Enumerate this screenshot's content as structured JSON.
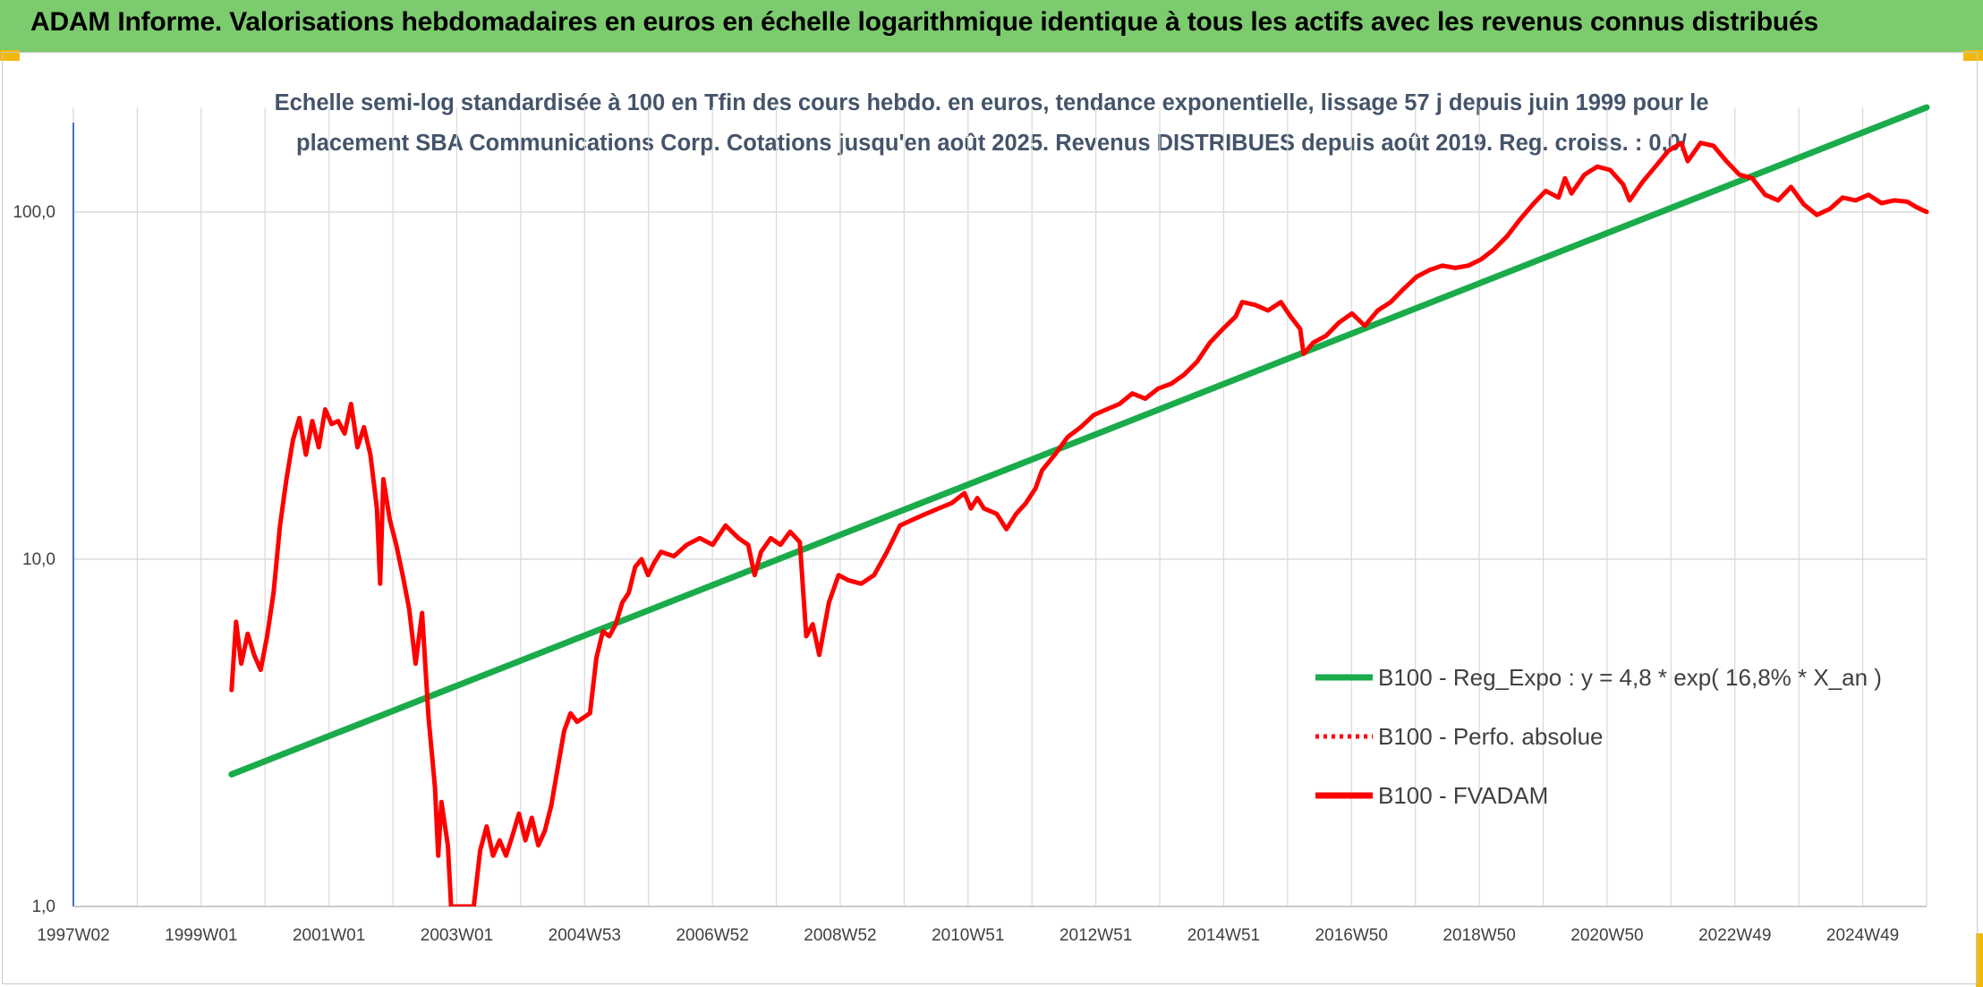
{
  "header": {
    "title": "ADAM Informe. Valorisations hebdomadaires en euros en échelle logarithmique identique à tous les actifs avec les revenus connus distribués"
  },
  "colors": {
    "banner": "#7ccb6e",
    "trend": "#1aab4a",
    "fvadam": "#ff0000",
    "grid": "#d9d9d9",
    "text": "#44546a"
  },
  "chart_data": {
    "type": "line",
    "title_lines": [
      "Echelle semi-log standardisée à 100 en Tfin des cours hebdo. en euros, tendance exponentielle, lissage 57 j depuis juin 1999 pour le",
      "placement SBA Communications Corp. Cotations jusqu'en août 2025. Revenus DISTRIBUES depuis août 2019. Reg. croiss. : 0,0/"
    ],
    "y_scale": "log",
    "ylim": [
      1,
      200
    ],
    "yticks": [
      "100,0",
      "10,0",
      "1,0"
    ],
    "x_tick_labels": [
      "1997W02",
      "1999W01",
      "2001W01",
      "2003W01",
      "2004W53",
      "2006W52",
      "2008W52",
      "2010W51",
      "2012W51",
      "2014W51",
      "2016W50",
      "2018W50",
      "2020W50",
      "2022W49",
      "2024W49"
    ],
    "xlim": [
      1997.0,
      2025.7
    ],
    "legend_position": "bottom-right",
    "series": [
      {
        "name": "B100 - Reg_Expo : y = 4,8 * exp( 16,8% *  X_an )",
        "style": "solid",
        "color": "#1aab4a",
        "points": [
          [
            1999.45,
            2.4
          ],
          [
            2025.7,
            200
          ]
        ]
      },
      {
        "name": "B100 - Perfo. absolue",
        "style": "dotted",
        "color": "#ff0000",
        "points": []
      },
      {
        "name": "B100 - FVADAM",
        "style": "solid",
        "color": "#ff0000",
        "points": [
          [
            1999.45,
            4.2
          ],
          [
            1999.52,
            6.6
          ],
          [
            1999.6,
            5.0
          ],
          [
            1999.7,
            6.1
          ],
          [
            1999.8,
            5.3
          ],
          [
            1999.9,
            4.8
          ],
          [
            2000.0,
            6.0
          ],
          [
            2000.1,
            8.0
          ],
          [
            2000.2,
            12.5
          ],
          [
            2000.3,
            17.0
          ],
          [
            2000.4,
            22.0
          ],
          [
            2000.5,
            25.5
          ],
          [
            2000.6,
            20.0
          ],
          [
            2000.7,
            25.0
          ],
          [
            2000.8,
            21.0
          ],
          [
            2000.9,
            27.0
          ],
          [
            2001.0,
            24.5
          ],
          [
            2001.1,
            25.0
          ],
          [
            2001.2,
            23.0
          ],
          [
            2001.3,
            28.0
          ],
          [
            2001.4,
            21.0
          ],
          [
            2001.5,
            24.0
          ],
          [
            2001.6,
            20.0
          ],
          [
            2001.7,
            14.0
          ],
          [
            2001.75,
            8.5
          ],
          [
            2001.8,
            17.0
          ],
          [
            2001.9,
            13.0
          ],
          [
            2002.0,
            11.0
          ],
          [
            2002.1,
            9.0
          ],
          [
            2002.2,
            7.2
          ],
          [
            2002.3,
            5.0
          ],
          [
            2002.4,
            7.0
          ],
          [
            2002.5,
            3.5
          ],
          [
            2002.6,
            2.2
          ],
          [
            2002.65,
            1.4
          ],
          [
            2002.7,
            2.0
          ],
          [
            2002.8,
            1.5
          ],
          [
            2002.85,
            1.0
          ],
          [
            2003.2,
            1.0
          ],
          [
            2003.3,
            1.45
          ],
          [
            2003.4,
            1.7
          ],
          [
            2003.5,
            1.4
          ],
          [
            2003.6,
            1.55
          ],
          [
            2003.7,
            1.4
          ],
          [
            2003.8,
            1.6
          ],
          [
            2003.9,
            1.85
          ],
          [
            2004.0,
            1.55
          ],
          [
            2004.1,
            1.8
          ],
          [
            2004.2,
            1.5
          ],
          [
            2004.3,
            1.65
          ],
          [
            2004.4,
            1.95
          ],
          [
            2004.5,
            2.5
          ],
          [
            2004.6,
            3.2
          ],
          [
            2004.7,
            3.6
          ],
          [
            2004.8,
            3.4
          ],
          [
            2004.9,
            3.5
          ],
          [
            2005.0,
            3.6
          ],
          [
            2005.1,
            5.2
          ],
          [
            2005.2,
            6.2
          ],
          [
            2005.3,
            6.0
          ],
          [
            2005.4,
            6.5
          ],
          [
            2005.5,
            7.5
          ],
          [
            2005.6,
            8.0
          ],
          [
            2005.7,
            9.5
          ],
          [
            2005.8,
            10.0
          ],
          [
            2005.9,
            9.0
          ],
          [
            2006.0,
            9.8
          ],
          [
            2006.1,
            10.5
          ],
          [
            2006.3,
            10.2
          ],
          [
            2006.5,
            11.0
          ],
          [
            2006.7,
            11.5
          ],
          [
            2006.9,
            11.0
          ],
          [
            2007.1,
            12.5
          ],
          [
            2007.3,
            11.5
          ],
          [
            2007.45,
            11.0
          ],
          [
            2007.55,
            9.0
          ],
          [
            2007.65,
            10.5
          ],
          [
            2007.8,
            11.5
          ],
          [
            2007.95,
            11.0
          ],
          [
            2008.1,
            12.0
          ],
          [
            2008.25,
            11.2
          ],
          [
            2008.35,
            6.0
          ],
          [
            2008.45,
            6.5
          ],
          [
            2008.55,
            5.3
          ],
          [
            2008.7,
            7.5
          ],
          [
            2008.85,
            9.0
          ],
          [
            2009.0,
            8.7
          ],
          [
            2009.2,
            8.5
          ],
          [
            2009.4,
            9.0
          ],
          [
            2009.6,
            10.5
          ],
          [
            2009.8,
            12.5
          ],
          [
            2010.0,
            13.0
          ],
          [
            2010.2,
            13.5
          ],
          [
            2010.4,
            14.0
          ],
          [
            2010.6,
            14.5
          ],
          [
            2010.8,
            15.5
          ],
          [
            2010.9,
            14.0
          ],
          [
            2011.0,
            15.0
          ],
          [
            2011.1,
            14.0
          ],
          [
            2011.3,
            13.5
          ],
          [
            2011.45,
            12.2
          ],
          [
            2011.6,
            13.5
          ],
          [
            2011.75,
            14.5
          ],
          [
            2011.9,
            16.0
          ],
          [
            2012.0,
            18.0
          ],
          [
            2012.2,
            20.0
          ],
          [
            2012.4,
            22.5
          ],
          [
            2012.6,
            24.0
          ],
          [
            2012.8,
            26.0
          ],
          [
            2013.0,
            27.0
          ],
          [
            2013.2,
            28.0
          ],
          [
            2013.4,
            30.0
          ],
          [
            2013.6,
            29.0
          ],
          [
            2013.8,
            31.0
          ],
          [
            2014.0,
            32.0
          ],
          [
            2014.2,
            34.0
          ],
          [
            2014.4,
            37.0
          ],
          [
            2014.6,
            42.0
          ],
          [
            2014.8,
            46.0
          ],
          [
            2015.0,
            50.0
          ],
          [
            2015.1,
            55.0
          ],
          [
            2015.3,
            54.0
          ],
          [
            2015.5,
            52.0
          ],
          [
            2015.7,
            55.0
          ],
          [
            2015.85,
            50.0
          ],
          [
            2016.0,
            46.0
          ],
          [
            2016.05,
            39.0
          ],
          [
            2016.2,
            42.0
          ],
          [
            2016.4,
            44.0
          ],
          [
            2016.6,
            48.0
          ],
          [
            2016.8,
            51.0
          ],
          [
            2017.0,
            47.0
          ],
          [
            2017.2,
            52.0
          ],
          [
            2017.4,
            55.0
          ],
          [
            2017.6,
            60.0
          ],
          [
            2017.8,
            65.0
          ],
          [
            2018.0,
            68.0
          ],
          [
            2018.2,
            70.0
          ],
          [
            2018.4,
            69.0
          ],
          [
            2018.6,
            70.0
          ],
          [
            2018.8,
            73.0
          ],
          [
            2019.0,
            78.0
          ],
          [
            2019.2,
            85.0
          ],
          [
            2019.4,
            95.0
          ],
          [
            2019.6,
            105.0
          ],
          [
            2019.8,
            115.0
          ],
          [
            2020.0,
            110.0
          ],
          [
            2020.1,
            125.0
          ],
          [
            2020.2,
            113.0
          ],
          [
            2020.4,
            128.0
          ],
          [
            2020.6,
            135.0
          ],
          [
            2020.8,
            132.0
          ],
          [
            2021.0,
            120.0
          ],
          [
            2021.1,
            108.0
          ],
          [
            2021.3,
            122.0
          ],
          [
            2021.5,
            135.0
          ],
          [
            2021.7,
            150.0
          ],
          [
            2021.9,
            158.0
          ],
          [
            2022.0,
            140.0
          ],
          [
            2022.2,
            158.0
          ],
          [
            2022.4,
            155.0
          ],
          [
            2022.6,
            140.0
          ],
          [
            2022.8,
            128.0
          ],
          [
            2023.0,
            125.0
          ],
          [
            2023.2,
            112.0
          ],
          [
            2023.4,
            108.0
          ],
          [
            2023.6,
            118.0
          ],
          [
            2023.8,
            105.0
          ],
          [
            2024.0,
            98.0
          ],
          [
            2024.2,
            102.0
          ],
          [
            2024.4,
            110.0
          ],
          [
            2024.6,
            108.0
          ],
          [
            2024.8,
            112.0
          ],
          [
            2025.0,
            106.0
          ],
          [
            2025.2,
            108.0
          ],
          [
            2025.4,
            107.0
          ],
          [
            2025.55,
            103.0
          ],
          [
            2025.7,
            100.0
          ]
        ]
      }
    ]
  }
}
